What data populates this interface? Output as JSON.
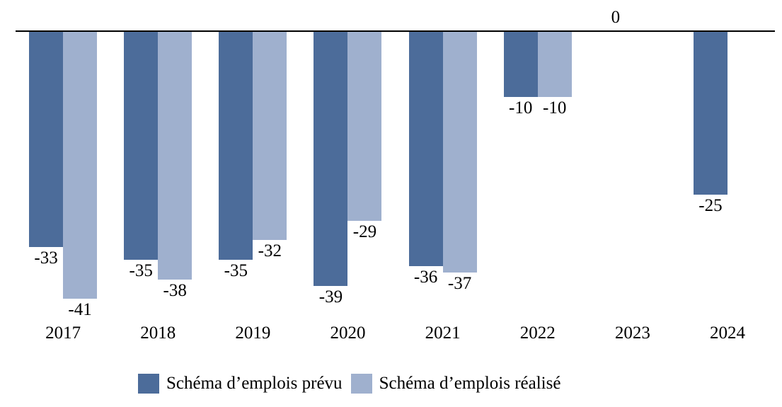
{
  "chart_data": {
    "type": "bar",
    "title": "",
    "xlabel": "",
    "ylabel": "",
    "categories": [
      "2017",
      "2018",
      "2019",
      "2020",
      "2021",
      "2022",
      "2023",
      "2024"
    ],
    "series": [
      {
        "name": "Schéma d’emplois prévu",
        "color": "#4C6C9A",
        "values": [
          -33,
          -35,
          -35,
          -39,
          -36,
          -10,
          0,
          -25
        ]
      },
      {
        "name": "Schéma d’emplois réalisé",
        "color": "#9FB0CE",
        "values": [
          -41,
          -38,
          -32,
          -29,
          -37,
          -10,
          null,
          null
        ]
      }
    ],
    "ylim": [
      -45,
      0
    ],
    "baseline_value": 0,
    "grid": false,
    "data_labels": true,
    "legend_position": "bottom",
    "axis_color": "#000000",
    "zero_label": "0"
  }
}
